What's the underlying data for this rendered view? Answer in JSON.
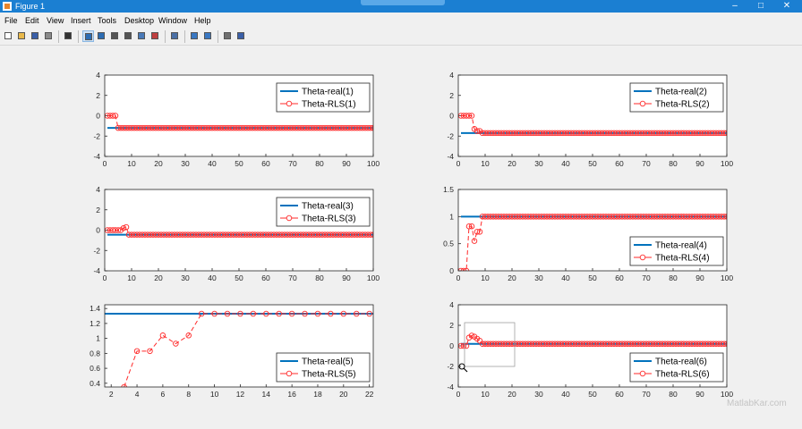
{
  "window": {
    "title": "Figure 1",
    "minimize": "–",
    "maximize": "□",
    "close": "✕"
  },
  "menu": [
    "File",
    "Edit",
    "View",
    "Insert",
    "Tools",
    "Desktop",
    "Window",
    "Help"
  ],
  "toolbar": [
    {
      "name": "new-figure-icon",
      "color": "#ffffff"
    },
    {
      "name": "open-file-icon",
      "color": "#e8b84a"
    },
    {
      "name": "save-icon",
      "color": "#3a5fa8"
    },
    {
      "name": "print-icon",
      "color": "#8a8a8a"
    },
    {
      "sep": true
    },
    {
      "name": "edit-plot-arrow-icon",
      "color": "#333333"
    },
    {
      "sep": true
    },
    {
      "name": "zoom-in-icon",
      "color": "#2d6db3",
      "active": true
    },
    {
      "name": "zoom-out-icon",
      "color": "#2d6db3"
    },
    {
      "name": "pan-hand-icon",
      "color": "#555555"
    },
    {
      "name": "rotate-3d-icon",
      "color": "#555555"
    },
    {
      "name": "data-cursor-icon",
      "color": "#4a7ab8"
    },
    {
      "name": "brush-icon",
      "color": "#c04040"
    },
    {
      "sep": true
    },
    {
      "name": "link-plot-icon",
      "color": "#4a6fa5"
    },
    {
      "sep": true
    },
    {
      "name": "insert-colorbar-icon",
      "color": "#3a78c2"
    },
    {
      "name": "insert-legend-icon",
      "color": "#3a78c2"
    },
    {
      "sep": true
    },
    {
      "name": "hide-plot-tools-icon",
      "color": "#707070"
    },
    {
      "name": "show-plot-tools-icon",
      "color": "#3a5fa8"
    }
  ],
  "colors": {
    "real": "#0072bd",
    "rls": "#ff2a2a",
    "axes_bg": "#ffffff"
  },
  "chart_data": [
    {
      "type": "line",
      "xlim": [
        0,
        100
      ],
      "ylim": [
        -4,
        4
      ],
      "xticks": [
        "0",
        "10",
        "20",
        "30",
        "40",
        "50",
        "60",
        "70",
        "80",
        "90",
        "100"
      ],
      "yticks": [
        "-4",
        "-2",
        "0",
        "2",
        "4"
      ],
      "legend_position": "top-right",
      "series": [
        {
          "name": "Theta-real(1)",
          "x": [
            1,
            100
          ],
          "y": [
            -1.2,
            -1.2
          ]
        },
        {
          "name": "Theta-RLS(1)",
          "x": [
            1,
            2,
            3,
            4,
            5,
            100
          ],
          "y": [
            0,
            0,
            0,
            0,
            -1.2,
            -1.2
          ]
        }
      ]
    },
    {
      "type": "line",
      "xlim": [
        0,
        100
      ],
      "ylim": [
        -4,
        4
      ],
      "xticks": [
        "0",
        "10",
        "20",
        "30",
        "40",
        "50",
        "60",
        "70",
        "80",
        "90",
        "100"
      ],
      "yticks": [
        "-4",
        "-2",
        "0",
        "2",
        "4"
      ],
      "legend_position": "top-right",
      "series": [
        {
          "name": "Theta-real(2)",
          "x": [
            1,
            100
          ],
          "y": [
            -1.7,
            -1.7
          ]
        },
        {
          "name": "Theta-RLS(2)",
          "x": [
            1,
            2,
            3,
            4,
            5,
            6,
            7,
            8,
            9,
            100
          ],
          "y": [
            0,
            0,
            0,
            0,
            0,
            -1.3,
            -1.5,
            -1.5,
            -1.7,
            -1.7
          ]
        }
      ]
    },
    {
      "type": "line",
      "xlim": [
        0,
        100
      ],
      "ylim": [
        -4,
        4
      ],
      "xticks": [
        "0",
        "10",
        "20",
        "30",
        "40",
        "50",
        "60",
        "70",
        "80",
        "90",
        "100"
      ],
      "yticks": [
        "-4",
        "-2",
        "0",
        "2",
        "4"
      ],
      "legend_position": "top-right",
      "series": [
        {
          "name": "Theta-real(3)",
          "x": [
            1,
            100
          ],
          "y": [
            -0.45,
            -0.45
          ]
        },
        {
          "name": "Theta-RLS(3)",
          "x": [
            1,
            2,
            3,
            4,
            5,
            6,
            7,
            8,
            9,
            100
          ],
          "y": [
            0,
            0,
            0,
            0,
            0,
            0,
            0.2,
            0.3,
            -0.45,
            -0.45
          ]
        }
      ]
    },
    {
      "type": "line",
      "xlim": [
        0,
        100
      ],
      "ylim": [
        0,
        1.5
      ],
      "xticks": [
        "0",
        "10",
        "20",
        "30",
        "40",
        "50",
        "60",
        "70",
        "80",
        "90",
        "100"
      ],
      "yticks": [
        "0",
        "0.5",
        "1",
        "1.5"
      ],
      "legend_position": "bottom-right",
      "series": [
        {
          "name": "Theta-real(4)",
          "x": [
            1,
            100
          ],
          "y": [
            1.0,
            1.0
          ]
        },
        {
          "name": "Theta-RLS(4)",
          "x": [
            1,
            2,
            3,
            4,
            5,
            6,
            7,
            8,
            9,
            100
          ],
          "y": [
            0,
            0,
            0,
            0.82,
            0.82,
            0.55,
            0.72,
            0.72,
            1.0,
            1.0
          ]
        }
      ]
    },
    {
      "type": "line",
      "xlim": [
        1.5,
        22.3
      ],
      "ylim": [
        0.35,
        1.45
      ],
      "xticks": [
        "2",
        "4",
        "6",
        "8",
        "10",
        "12",
        "14",
        "16",
        "18",
        "20",
        "22"
      ],
      "yticks": [
        "0.4",
        "0.6",
        "0.8",
        "1",
        "1.2",
        "1.4"
      ],
      "legend_position": "bottom-right",
      "series": [
        {
          "name": "Theta-real(5)",
          "x": [
            1.5,
            22.3
          ],
          "y": [
            1.33,
            1.33
          ]
        },
        {
          "name": "Theta-RLS(5)",
          "x": [
            3,
            4,
            5,
            6,
            7,
            8,
            9,
            10,
            11,
            12,
            13,
            14,
            15,
            16,
            17,
            18,
            19,
            20,
            21,
            22
          ],
          "y": [
            0.35,
            0.83,
            0.83,
            1.04,
            0.93,
            1.04,
            1.33,
            1.33,
            1.33,
            1.33,
            1.33,
            1.33,
            1.33,
            1.33,
            1.33,
            1.33,
            1.33,
            1.33,
            1.33,
            1.33
          ]
        }
      ]
    },
    {
      "type": "line",
      "xlim": [
        0,
        100
      ],
      "ylim": [
        -4,
        4
      ],
      "xticks": [
        "0",
        "10",
        "20",
        "30",
        "40",
        "50",
        "60",
        "70",
        "80",
        "90",
        "100"
      ],
      "yticks": [
        "-4",
        "-2",
        "0",
        "2",
        "4"
      ],
      "legend_position": "bottom-right",
      "series": [
        {
          "name": "Theta-real(6)",
          "x": [
            1,
            100
          ],
          "y": [
            0.2,
            0.2
          ]
        },
        {
          "name": "Theta-RLS(6)",
          "x": [
            1,
            2,
            3,
            4,
            5,
            6,
            7,
            8,
            9,
            100
          ],
          "y": [
            0,
            0,
            0,
            0.8,
            1.0,
            0.9,
            0.7,
            0.5,
            0.2,
            0.2
          ]
        }
      ]
    }
  ],
  "watermark": "MatlabKar.com"
}
